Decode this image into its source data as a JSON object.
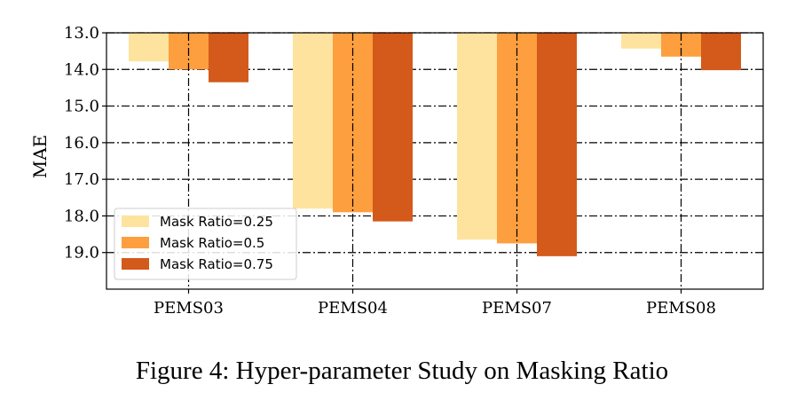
{
  "caption": "Figure 4: Hyper-parameter Study on Masking Ratio",
  "chart_data": {
    "type": "bar",
    "title": "",
    "xlabel": "",
    "ylabel": "MAE",
    "categories": [
      "PEMS03",
      "PEMS04",
      "PEMS07",
      "PEMS08"
    ],
    "y_axis_inverted": true,
    "ylim": [
      13.0,
      20.0
    ],
    "yticks": [
      13.0,
      14.0,
      15.0,
      16.0,
      17.0,
      18.0,
      19.0
    ],
    "ytick_labels": [
      "13.0",
      "14.0",
      "15.0",
      "16.0",
      "17.0",
      "18.0",
      "19.0"
    ],
    "grid": "dash-dot",
    "legend_position": "lower-left",
    "series": [
      {
        "name": "Mask Ratio=0.25",
        "color": "#fee39f",
        "values": [
          13.78,
          17.8,
          18.65,
          13.43
        ]
      },
      {
        "name": "Mask Ratio=0.5",
        "color": "#fd9e3f",
        "values": [
          14.0,
          17.9,
          18.75,
          13.65
        ]
      },
      {
        "name": "Mask Ratio=0.75",
        "color": "#d35a1a",
        "values": [
          14.35,
          18.15,
          19.1,
          14.02
        ]
      }
    ]
  }
}
